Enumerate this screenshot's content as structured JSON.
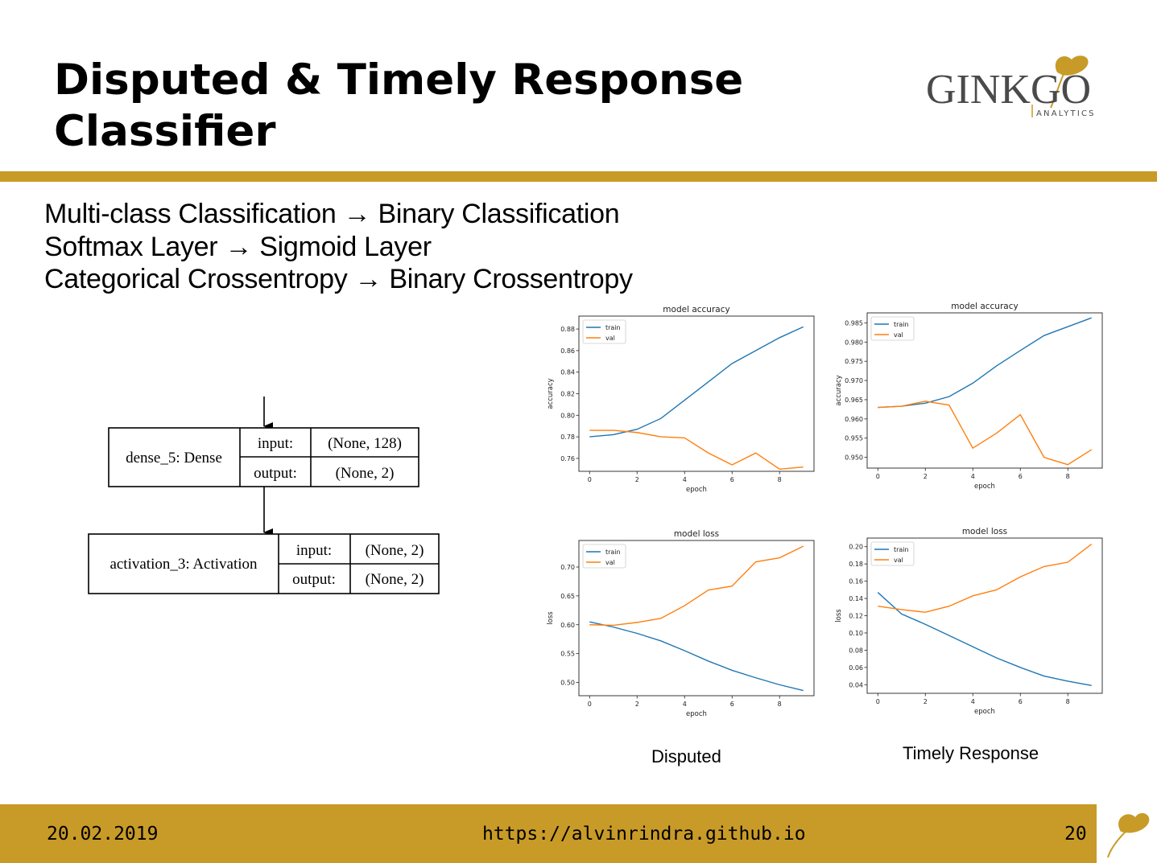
{
  "slide": {
    "title_line1": "Disputed & Timely Response",
    "title_line2": "Classifier",
    "accent_color": "#c89b28",
    "logo": {
      "wordmark_pre": "GINK",
      "wordmark_post": "GO",
      "tagline": "ANALYTICS",
      "icon": "ginkgo-leaf-icon"
    },
    "bullets": [
      "Multi-class Classification → Binary Classification",
      "Softmax Layer → Sigmoid Layer",
      "Categorical Crossentropy → Binary Crossentropy"
    ],
    "model_diagram": {
      "layers": [
        {
          "name": "dense_5: Dense",
          "input_label": "input:",
          "input_value": "(None, 128)",
          "output_label": "output:",
          "output_value": "(None, 2)"
        },
        {
          "name": "activation_3: Activation",
          "input_label": "input:",
          "input_value": "(None, 2)",
          "output_label": "output:",
          "output_value": "(None, 2)"
        }
      ]
    },
    "captions": {
      "disputed": "Disputed",
      "timely": "Timely Response"
    },
    "footer": {
      "date": "20.02.2019",
      "url": "https://alvinrindra.github.io",
      "page": "20"
    }
  },
  "chart_data": [
    {
      "type": "line",
      "title": "model accuracy",
      "xlabel": "epoch",
      "ylabel": "accuracy",
      "x": [
        0,
        1,
        2,
        3,
        4,
        5,
        6,
        7,
        8,
        9
      ],
      "xlim": [
        -0.45,
        9.45
      ],
      "ylim": [
        0.748,
        0.892
      ],
      "xticks": [
        0,
        2,
        4,
        6,
        8
      ],
      "yticks": [
        0.76,
        0.78,
        0.8,
        0.82,
        0.84,
        0.86,
        0.88
      ],
      "ytick_decimals": 2,
      "legend": "top-left",
      "series": [
        {
          "name": "train",
          "color": "#1f77b4",
          "values": [
            0.78,
            0.782,
            0.787,
            0.797,
            0.814,
            0.831,
            0.848,
            0.86,
            0.872,
            0.882
          ]
        },
        {
          "name": "val",
          "color": "#ff7f0e",
          "values": [
            0.786,
            0.786,
            0.784,
            0.78,
            0.779,
            0.765,
            0.754,
            0.765,
            0.75,
            0.752
          ]
        }
      ]
    },
    {
      "type": "line",
      "title": "model accuracy",
      "xlabel": "epoch",
      "ylabel": "accuracy",
      "x": [
        0,
        1,
        2,
        3,
        4,
        5,
        6,
        7,
        8,
        9
      ],
      "xlim": [
        -0.45,
        9.45
      ],
      "ylim": [
        0.9472,
        0.9876
      ],
      "xticks": [
        0,
        2,
        4,
        6,
        8
      ],
      "yticks": [
        0.95,
        0.955,
        0.96,
        0.965,
        0.97,
        0.975,
        0.98,
        0.985
      ],
      "ytick_decimals": 3,
      "legend": "top-left",
      "series": [
        {
          "name": "train",
          "color": "#1f77b4",
          "values": [
            0.963,
            0.9633,
            0.9641,
            0.9658,
            0.9693,
            0.9738,
            0.9778,
            0.9817,
            0.984,
            0.9863
          ]
        },
        {
          "name": "val",
          "color": "#ff7f0e",
          "values": [
            0.963,
            0.9633,
            0.9646,
            0.9636,
            0.9524,
            0.9563,
            0.9611,
            0.95,
            0.9481,
            0.952
          ]
        }
      ]
    },
    {
      "type": "line",
      "title": "model loss",
      "xlabel": "epoch",
      "ylabel": "loss",
      "x": [
        0,
        1,
        2,
        3,
        4,
        5,
        6,
        7,
        8,
        9
      ],
      "xlim": [
        -0.45,
        9.45
      ],
      "ylim": [
        0.477,
        0.746
      ],
      "xticks": [
        0,
        2,
        4,
        6,
        8
      ],
      "yticks": [
        0.5,
        0.55,
        0.6,
        0.65,
        0.7
      ],
      "ytick_decimals": 2,
      "legend": "top-left",
      "series": [
        {
          "name": "train",
          "color": "#1f77b4",
          "values": [
            0.605,
            0.596,
            0.585,
            0.572,
            0.555,
            0.537,
            0.521,
            0.508,
            0.496,
            0.486
          ]
        },
        {
          "name": "val",
          "color": "#ff7f0e",
          "values": [
            0.6,
            0.599,
            0.604,
            0.611,
            0.633,
            0.66,
            0.667,
            0.709,
            0.716,
            0.736
          ]
        }
      ]
    },
    {
      "type": "line",
      "title": "model loss",
      "xlabel": "epoch",
      "ylabel": "loss",
      "x": [
        0,
        1,
        2,
        3,
        4,
        5,
        6,
        7,
        8,
        9
      ],
      "xlim": [
        -0.45,
        9.45
      ],
      "ylim": [
        0.03,
        0.21
      ],
      "xticks": [
        0,
        2,
        4,
        6,
        8
      ],
      "yticks": [
        0.04,
        0.06,
        0.08,
        0.1,
        0.12,
        0.14,
        0.16,
        0.18,
        0.2
      ],
      "ytick_decimals": 2,
      "legend": "top-left",
      "series": [
        {
          "name": "train",
          "color": "#1f77b4",
          "values": [
            0.147,
            0.122,
            0.11,
            0.097,
            0.084,
            0.071,
            0.06,
            0.05,
            0.044,
            0.039
          ]
        },
        {
          "name": "val",
          "color": "#ff7f0e",
          "values": [
            0.131,
            0.127,
            0.124,
            0.131,
            0.143,
            0.15,
            0.165,
            0.177,
            0.182,
            0.203
          ]
        }
      ]
    }
  ]
}
